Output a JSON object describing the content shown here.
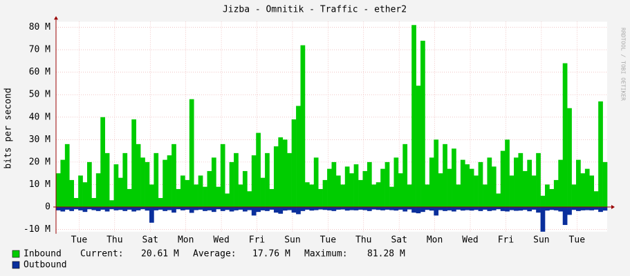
{
  "chart_data": {
    "type": "area",
    "title": "Jizba - Omnitik - Traffic - ether2",
    "y_label": "bits per second",
    "watermark": "RRDTOOL / TOBI OETIKER",
    "xlim": [
      0,
      31
    ],
    "xticks": [
      {
        "value": 1.3,
        "label": "Tue"
      },
      {
        "value": 3.3,
        "label": "Thu"
      },
      {
        "value": 5.3,
        "label": "Sat"
      },
      {
        "value": 7.3,
        "label": "Mon"
      },
      {
        "value": 9.3,
        "label": "Wed"
      },
      {
        "value": 11.3,
        "label": "Fri"
      },
      {
        "value": 13.3,
        "label": "Sun"
      },
      {
        "value": 15.3,
        "label": "Tue"
      },
      {
        "value": 17.3,
        "label": "Thu"
      },
      {
        "value": 19.3,
        "label": "Sat"
      },
      {
        "value": 21.3,
        "label": "Mon"
      },
      {
        "value": 23.3,
        "label": "Wed"
      },
      {
        "value": 25.3,
        "label": "Fri"
      },
      {
        "value": 27.3,
        "label": "Sun"
      },
      {
        "value": 29.3,
        "label": "Tue"
      }
    ],
    "ylim": [
      -11,
      82.5
    ],
    "yticks": [
      {
        "value": -10,
        "label": "-10 M"
      },
      0,
      {
        "value": 10,
        "label": "10 M"
      },
      {
        "value": 20,
        "label": "20 M"
      },
      {
        "value": 30,
        "label": "30 M"
      },
      {
        "value": 40,
        "label": "40 M"
      },
      {
        "value": 50,
        "label": "50 M"
      },
      {
        "value": 60,
        "label": "60 M"
      },
      {
        "value": 70,
        "label": "70 M"
      },
      {
        "value": 80,
        "label": "80 M"
      }
    ],
    "grid": true,
    "series": [
      {
        "name": "Inbound",
        "color": "#00cc00",
        "values": [
          15,
          21,
          28,
          12,
          4,
          14,
          11,
          20,
          4,
          15,
          40,
          24,
          3,
          19,
          13,
          24,
          8,
          39,
          28,
          22,
          20,
          10,
          24,
          4,
          21,
          23,
          28,
          8,
          14,
          12,
          48,
          10,
          14,
          9,
          16,
          22,
          9,
          28,
          6,
          20,
          24,
          10,
          16,
          7,
          23,
          33,
          13,
          24,
          8,
          27,
          31,
          30,
          24,
          39,
          45,
          72,
          11,
          10,
          22,
          8,
          12,
          17,
          20,
          14,
          10,
          18,
          15,
          19,
          12,
          16,
          20,
          10,
          11,
          17,
          20,
          9,
          22,
          15,
          28,
          10,
          81,
          54,
          74,
          10,
          22,
          30,
          15,
          28,
          17,
          26,
          10,
          21,
          19,
          17,
          14,
          20,
          10,
          22,
          18,
          6,
          25,
          30,
          14,
          22,
          24,
          16,
          21,
          14,
          24,
          5,
          10,
          8,
          12,
          21,
          64,
          44,
          10,
          21,
          15,
          17,
          14,
          7,
          47,
          20
        ],
        "stats": [
          {
            "label": "Current:",
            "value": "20.61 M"
          },
          {
            "label": "Average:",
            "value": "17.76 M"
          },
          {
            "label": "Maximum:",
            "value": "81.28 M"
          }
        ]
      },
      {
        "name": "Outbound",
        "color": "#0a2f9c",
        "values": [
          -1.5,
          -2,
          -1.2,
          -1.8,
          -1,
          -1.5,
          -2.2,
          -1,
          -1.4,
          -1.8,
          -1.2,
          -2,
          -1,
          -1.5,
          -1.3,
          -1.8,
          -1.2,
          -2,
          -1.5,
          -1,
          -1.6,
          -7,
          -1.5,
          -1.2,
          -1.8,
          -1.4,
          -2.5,
          -1,
          -1.5,
          -1.2,
          -2.6,
          -1.4,
          -1.2,
          -1.8,
          -1.5,
          -2.2,
          -1,
          -1.8,
          -1.3,
          -2,
          -1.5,
          -1.2,
          -2,
          -1.4,
          -3.8,
          -2.2,
          -1.5,
          -1.8,
          -1.2,
          -2.5,
          -3,
          -1.6,
          -1.4,
          -2.5,
          -3.2,
          -1.8,
          -1.2,
          -1.6,
          -1.4,
          -1.1,
          -1.3,
          -1.5,
          -1.8,
          -1.2,
          -1.1,
          -1.6,
          -1.4,
          -1.5,
          -1.2,
          -1.4,
          -1.8,
          -1.1,
          -1.3,
          -1.5,
          -1.2,
          -1.4,
          -1.6,
          -1.2,
          -2,
          -1.1,
          -2.5,
          -2.8,
          -2.2,
          -1.3,
          -1.6,
          -3.8,
          -1.4,
          -1.8,
          -1.5,
          -2,
          -1.2,
          -1.6,
          -1.4,
          -1.6,
          -1.3,
          -1.8,
          -1.2,
          -1.8,
          -1.5,
          -1,
          -1.8,
          -2,
          -1.4,
          -1.7,
          -1.6,
          -1.3,
          -1.9,
          -1.2,
          -2.5,
          -11,
          -1.6,
          -1.3,
          -1.5,
          -2,
          -8,
          -3.5,
          -1.3,
          -1.8,
          -1.5,
          -1.4,
          -1.5,
          -1.2,
          -2.2,
          -1.6
        ]
      }
    ],
    "legend_position": "bottom-left"
  }
}
